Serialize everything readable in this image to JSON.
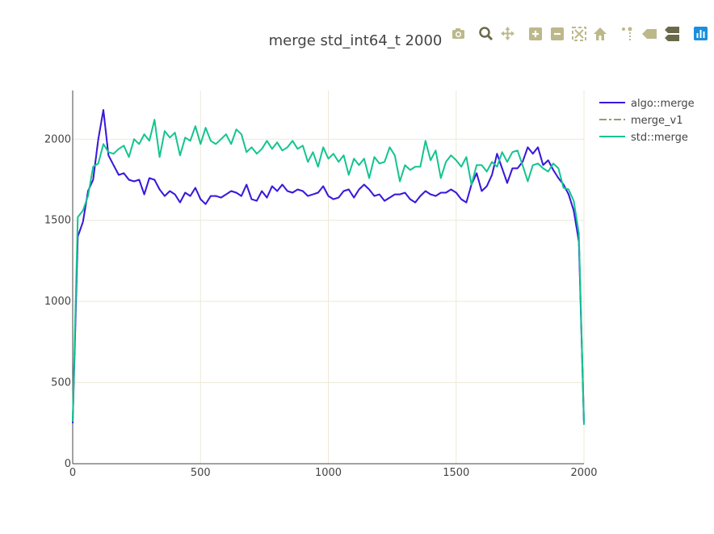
{
  "colors": {
    "algo_merge": "#3a18e0",
    "merge_v1": "#9a9a72",
    "std_merge": "#13c48f",
    "grid": "#ece9d6",
    "axis": "#444444",
    "modebar_icon": "#bdb88a",
    "modebar_icon_dark": "#6a6a4a",
    "plotly_logo": "#1a8fdc"
  },
  "modebar": {
    "buttons": [
      "camera-icon",
      "zoom-icon",
      "pan-icon",
      "zoom-in-icon",
      "zoom-out-icon",
      "autoscale-icon",
      "home-icon",
      "spike-lines-icon",
      "hover-closest-icon",
      "hover-compare-icon",
      "plotly-logo-icon"
    ]
  },
  "chart_data": {
    "type": "line",
    "title": "merge std_int64_t 2000",
    "xlabel": "",
    "ylabel": "",
    "xlim": [
      0,
      2000
    ],
    "ylim": [
      0,
      2300
    ],
    "x_ticks": [
      0,
      500,
      1000,
      1500,
      2000
    ],
    "x_tick_labels": [
      "0",
      "500",
      "1000",
      "1500",
      "2000"
    ],
    "y_ticks": [
      0,
      500,
      1000,
      1500,
      2000
    ],
    "y_tick_labels": [
      "0",
      "500",
      "1000",
      "1500",
      "2000"
    ],
    "grid": true,
    "legend_position": "top-right",
    "series": [
      {
        "name": "algo::merge",
        "dash": "solid",
        "x": [
          0,
          20,
          40,
          60,
          80,
          100,
          120,
          140,
          160,
          180,
          200,
          220,
          240,
          260,
          280,
          300,
          320,
          340,
          360,
          380,
          400,
          420,
          440,
          460,
          480,
          500,
          520,
          540,
          560,
          580,
          600,
          620,
          640,
          660,
          680,
          700,
          720,
          740,
          760,
          780,
          800,
          820,
          840,
          860,
          880,
          900,
          920,
          940,
          960,
          980,
          1000,
          1020,
          1040,
          1060,
          1080,
          1100,
          1120,
          1140,
          1160,
          1180,
          1200,
          1220,
          1240,
          1260,
          1280,
          1300,
          1320,
          1340,
          1360,
          1380,
          1400,
          1420,
          1440,
          1460,
          1480,
          1500,
          1520,
          1540,
          1560,
          1580,
          1600,
          1620,
          1640,
          1660,
          1680,
          1700,
          1720,
          1740,
          1760,
          1780,
          1800,
          1820,
          1840,
          1860,
          1880,
          1900,
          1920,
          1940,
          1960,
          1980,
          2000
        ],
        "y": [
          250,
          1400,
          1490,
          1680,
          1750,
          2000,
          2180,
          1900,
          1840,
          1780,
          1790,
          1750,
          1740,
          1750,
          1660,
          1760,
          1750,
          1690,
          1650,
          1680,
          1660,
          1610,
          1670,
          1650,
          1700,
          1630,
          1600,
          1650,
          1650,
          1640,
          1660,
          1680,
          1670,
          1650,
          1720,
          1630,
          1620,
          1680,
          1640,
          1710,
          1680,
          1720,
          1680,
          1670,
          1690,
          1680,
          1650,
          1660,
          1670,
          1710,
          1650,
          1630,
          1640,
          1680,
          1690,
          1640,
          1690,
          1720,
          1690,
          1650,
          1660,
          1620,
          1640,
          1660,
          1660,
          1670,
          1630,
          1610,
          1650,
          1680,
          1660,
          1650,
          1670,
          1670,
          1690,
          1670,
          1630,
          1610,
          1720,
          1790,
          1680,
          1710,
          1780,
          1910,
          1820,
          1730,
          1820,
          1820,
          1860,
          1950,
          1910,
          1950,
          1840,
          1870,
          1810,
          1760,
          1720,
          1660,
          1560,
          1370,
          250
        ]
      },
      {
        "name": "merge_v1",
        "dash": "dashdot",
        "x": [
          0,
          20,
          40,
          60,
          80,
          100,
          120,
          140,
          160,
          180,
          200,
          220,
          240,
          260,
          280,
          300,
          320,
          340,
          360,
          380,
          400,
          420,
          440,
          460,
          480,
          500,
          520,
          540,
          560,
          580,
          600,
          620,
          640,
          660,
          680,
          700,
          720,
          740,
          760,
          780,
          800,
          820,
          840,
          860,
          880,
          900,
          920,
          940,
          960,
          980,
          1000,
          1020,
          1040,
          1060,
          1080,
          1100,
          1120,
          1140,
          1160,
          1180,
          1200,
          1220,
          1240,
          1260,
          1280,
          1300,
          1320,
          1340,
          1360,
          1380,
          1400,
          1420,
          1440,
          1460,
          1480,
          1500,
          1520,
          1540,
          1560,
          1580,
          1600,
          1620,
          1640,
          1660,
          1680,
          1700,
          1720,
          1740,
          1760,
          1780,
          1800,
          1820,
          1840,
          1860,
          1880,
          1900,
          1920,
          1940,
          1960,
          1980,
          2000
        ],
        "y": [
          250,
          1400,
          1490,
          1680,
          1750,
          2000,
          2180,
          1900,
          1840,
          1780,
          1790,
          1750,
          1740,
          1750,
          1660,
          1760,
          1750,
          1690,
          1650,
          1680,
          1660,
          1610,
          1670,
          1650,
          1700,
          1630,
          1600,
          1650,
          1650,
          1640,
          1660,
          1680,
          1670,
          1650,
          1720,
          1630,
          1620,
          1680,
          1640,
          1710,
          1680,
          1720,
          1680,
          1670,
          1690,
          1680,
          1650,
          1660,
          1670,
          1710,
          1650,
          1630,
          1640,
          1680,
          1690,
          1640,
          1690,
          1720,
          1690,
          1650,
          1660,
          1620,
          1640,
          1660,
          1660,
          1670,
          1630,
          1610,
          1650,
          1680,
          1660,
          1650,
          1670,
          1670,
          1690,
          1670,
          1630,
          1610,
          1720,
          1790,
          1680,
          1710,
          1780,
          1910,
          1820,
          1730,
          1820,
          1820,
          1860,
          1950,
          1910,
          1950,
          1840,
          1870,
          1810,
          1760,
          1720,
          1660,
          1560,
          1370,
          250
        ]
      },
      {
        "name": "std::merge",
        "dash": "solid",
        "x": [
          0,
          20,
          40,
          60,
          80,
          100,
          120,
          140,
          160,
          180,
          200,
          220,
          240,
          260,
          280,
          300,
          320,
          340,
          360,
          380,
          400,
          420,
          440,
          460,
          480,
          500,
          520,
          540,
          560,
          580,
          600,
          620,
          640,
          660,
          680,
          700,
          720,
          740,
          760,
          780,
          800,
          820,
          840,
          860,
          880,
          900,
          920,
          940,
          960,
          980,
          1000,
          1020,
          1040,
          1060,
          1080,
          1100,
          1120,
          1140,
          1160,
          1180,
          1200,
          1220,
          1240,
          1260,
          1280,
          1300,
          1320,
          1340,
          1360,
          1380,
          1400,
          1420,
          1440,
          1460,
          1480,
          1500,
          1520,
          1540,
          1560,
          1580,
          1600,
          1620,
          1640,
          1660,
          1680,
          1700,
          1720,
          1740,
          1760,
          1780,
          1800,
          1820,
          1840,
          1860,
          1880,
          1900,
          1920,
          1940,
          1960,
          1980,
          2000
        ],
        "y": [
          260,
          1520,
          1560,
          1650,
          1830,
          1850,
          1970,
          1920,
          1910,
          1940,
          1960,
          1890,
          2000,
          1970,
          2030,
          1990,
          2120,
          1890,
          2050,
          2010,
          2040,
          1900,
          2010,
          1990,
          2080,
          1970,
          2070,
          1990,
          1970,
          2000,
          2030,
          1970,
          2060,
          2030,
          1920,
          1950,
          1910,
          1940,
          1990,
          1940,
          1980,
          1930,
          1950,
          1990,
          1940,
          1960,
          1860,
          1920,
          1830,
          1950,
          1880,
          1910,
          1860,
          1900,
          1780,
          1880,
          1840,
          1880,
          1760,
          1890,
          1850,
          1860,
          1950,
          1900,
          1740,
          1840,
          1810,
          1830,
          1830,
          1990,
          1870,
          1930,
          1760,
          1860,
          1900,
          1870,
          1830,
          1890,
          1720,
          1840,
          1840,
          1800,
          1860,
          1830,
          1920,
          1860,
          1920,
          1930,
          1840,
          1740,
          1840,
          1850,
          1820,
          1800,
          1850,
          1820,
          1700,
          1690,
          1620,
          1420,
          240
        ]
      }
    ]
  }
}
